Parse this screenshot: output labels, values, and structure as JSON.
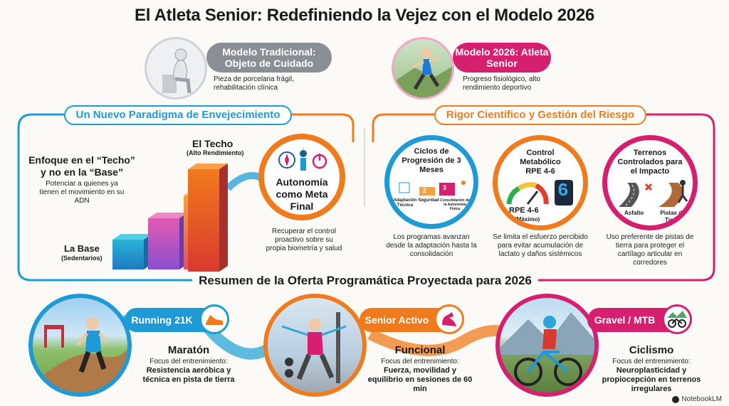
{
  "title": "El Atleta Senior: Redefiniendo la Vejez con el Modelo 2026",
  "traditional": {
    "label": "Modelo Tradicional: Objeto de Cuidado",
    "desc": "Pieza de porcelana frágil, rehabilitación clínica"
  },
  "model2026": {
    "label": "Modelo 2026: Atleta Senior",
    "desc": "Progreso fisiológico, alto rendimiento deportivo"
  },
  "paradigm": {
    "header": "Un Nuevo Paradigma de Envejecimiento",
    "focus_title": "Enfoque en el “Techo” y no en la “Base”",
    "focus_desc": "Potenciar a quienes ya tienen el movimiento en su ADN",
    "techo": "El Techo",
    "techo_sub": "(Alto Rendimiento)",
    "base": "La Base",
    "base_sub": "(Sedentarios)",
    "autonomy": "Autonomía como Meta Final",
    "autonomy_desc": "Recuperar el control proactivo sobre su propia biometría y salud"
  },
  "risk": {
    "header": "Rigor Científico y Gestión del Riesgo",
    "cycles": {
      "title": "Ciclos de Progresión de 3 Meses",
      "steps": [
        {
          "num": "1",
          "label": "Adaptación Técnica"
        },
        {
          "num": "2",
          "label": "Seguridad"
        },
        {
          "num": "3",
          "label": "Consolidación de la Autonomía Física"
        }
      ],
      "desc": "Los programas avanzan desde la adaptación hasta la consolidación"
    },
    "control": {
      "title": "Control Metabólico RPE 4-6",
      "gauge_label": "RPE 4-6",
      "gauge_sub": "(Máximo)",
      "display_digit": "6",
      "desc": "Se limita el esfuerzo percibido para evitar acumulación de lactato y daños sistémicos"
    },
    "terrain": {
      "title": "Terrenos Controlados para el Impacto",
      "asphalt": "Asfalto",
      "dirt": "Pistas de Tierra",
      "desc": "Uso preferente de pistas de tierra para proteger el cartílago articular en corredores"
    }
  },
  "summary": {
    "header": "Resumen de la Oferta Programática Proyectada para 2026",
    "programs": [
      {
        "tag": "Running 21K",
        "name": "Maratón",
        "focus_label": "Focus del entrenimiento:",
        "focus": "Resistencia aeróbica y técnica en pista de tierra"
      },
      {
        "tag": "Senior Activo",
        "name": "Funcional",
        "focus_label": "Focus del entrenimiento:",
        "focus": "Fuerza, movilidad y equilibrio en sesiones de 60 min"
      },
      {
        "tag": "Gravel / MTB",
        "name": "Ciclismo",
        "focus_label": "Focus del entrenimiento:",
        "focus": "Neuroplasticidad y propiocepción en terrenos irregulares"
      }
    ]
  },
  "footer": "NotebookLM",
  "colors": {
    "blue": "#1e9ad6",
    "orange": "#f07b1c",
    "magenta": "#d61f6f",
    "gray": "#8a8f96"
  }
}
